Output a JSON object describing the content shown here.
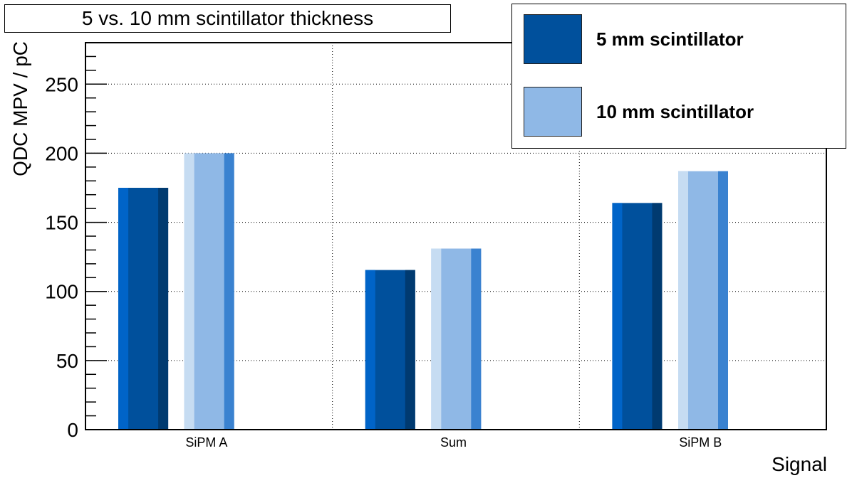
{
  "chart_data": {
    "type": "bar",
    "title": "5 vs. 10 mm scintillator thickness",
    "xlabel": "Signal",
    "ylabel": "QDC MPV / pC",
    "categories": [
      "SiPM A",
      "Sum",
      "SiPM B"
    ],
    "ylim": [
      0,
      280
    ],
    "yticks": [
      0,
      50,
      100,
      150,
      200,
      250
    ],
    "grid": true,
    "legend_position": "top-right",
    "series": [
      {
        "name": "5 mm scintillator",
        "values": [
          175,
          115.5,
          164
        ],
        "color": "#00509c",
        "light": "#0064c8",
        "dark": "#003a70"
      },
      {
        "name": "10 mm scintillator",
        "values": [
          200,
          131,
          187
        ],
        "color": "#8fb8e6",
        "light": "#c6dcf2",
        "dark": "#3a82d0"
      }
    ]
  }
}
